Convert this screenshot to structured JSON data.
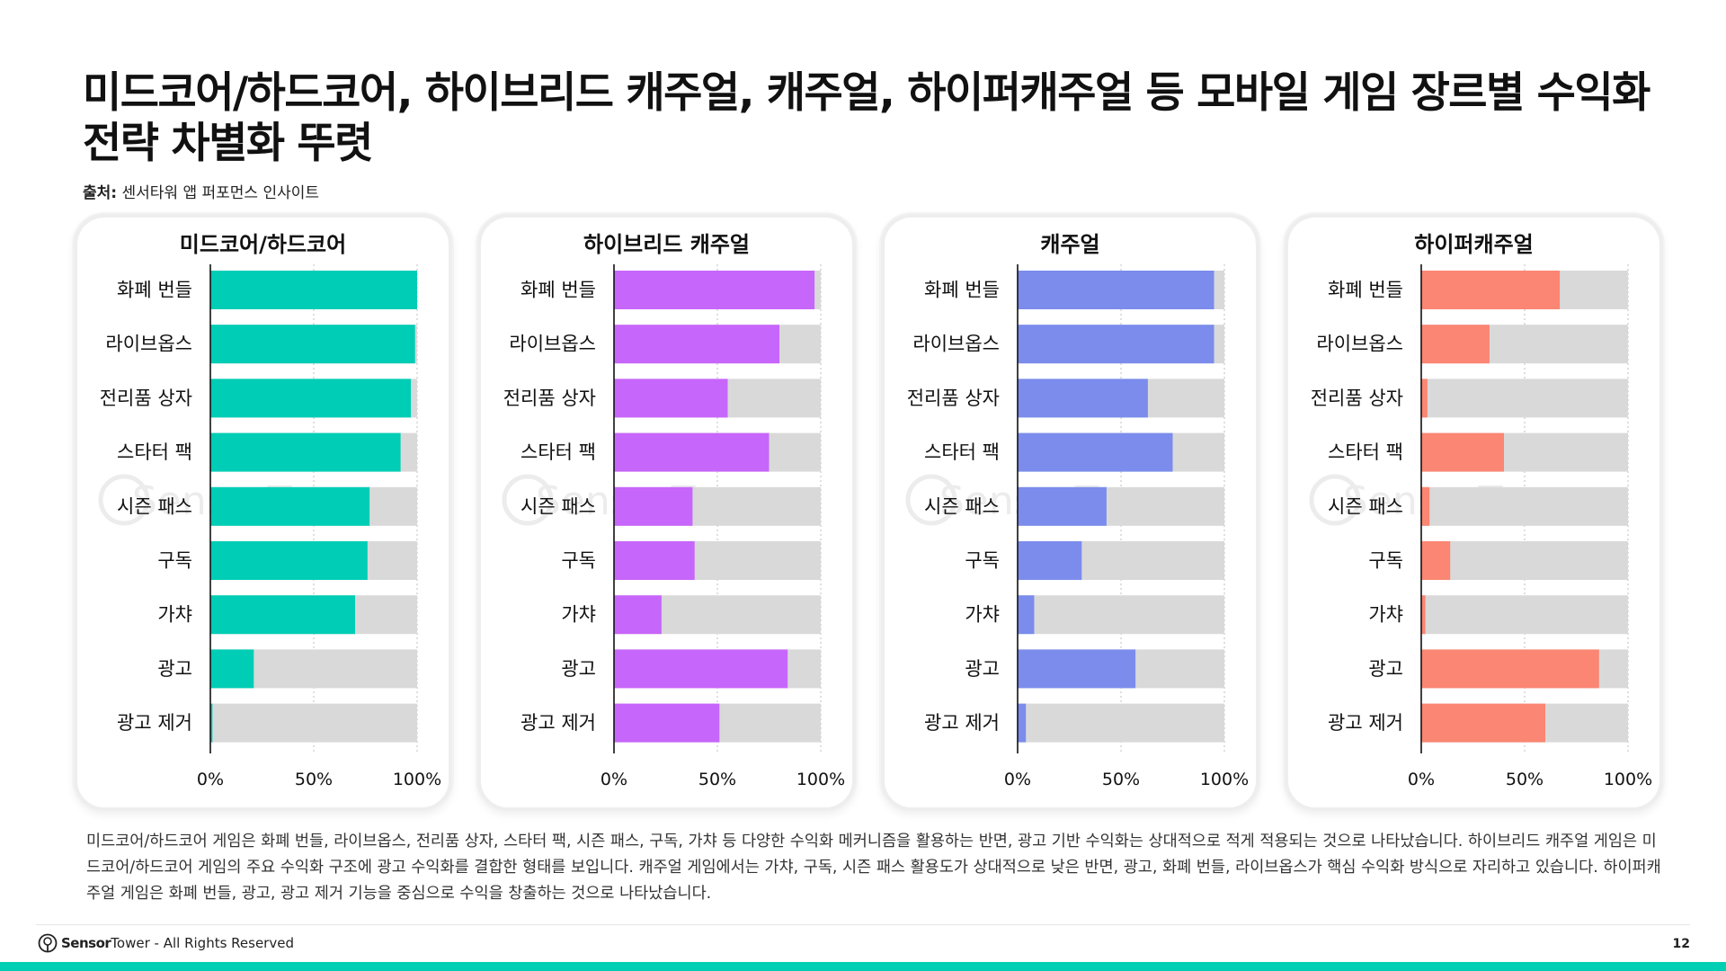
{
  "title": "미드코어/하드코어, 하이브리드 캐주얼, 캐주얼, 하이퍼캐주얼 등 모바일 게임 장르별 수익화 전략 차별화 뚜렷",
  "source": {
    "label": "출처:",
    "text": "센서타워 앱 퍼포먼스 인사이트"
  },
  "description": "미드코어/하드코어 게임은 화폐 번들, 라이브옵스, 전리품 상자, 스타터 팩, 시즌 패스, 구독, 가챠 등 다양한 수익화 메커니즘을 활용하는 반면, 광고 기반 수익화는 상대적으로 적게 적용되는 것으로 나타났습니다. 하이브리드 캐주얼 게임은 미드코어/하드코어 게임의 주요 수익화 구조에 광고 수익화를 결합한 형태를 보입니다. 캐주얼 게임에서는 가챠, 구독, 시즌 패스 활용도가 상대적으로 낮은 반면, 광고, 화폐 번들, 라이브옵스가 핵심 수익화 방식으로 자리하고 있습니다. 하이퍼캐주얼 게임은 화폐 번들, 광고, 광고 제거 기능을 중심으로 수익을 창출하는 것으로 나타났습니다.",
  "footer": {
    "brand_bold": "Sensor",
    "brand_rest": "Tower",
    "rights": " - All Rights Reserved",
    "page": "12"
  },
  "watermark": "SensorTower",
  "colors": {
    "accent": "#00cfb4",
    "track": "#d9d9d9"
  },
  "chart_data": [
    {
      "type": "bar",
      "orientation": "horizontal",
      "stacked_to_100": true,
      "title": "미드코어/하드코어",
      "color": "#00cdb5",
      "categories": [
        "화폐 번들",
        "라이브옵스",
        "전리품 상자",
        "스타터 팩",
        "시즌 패스",
        "구독",
        "가챠",
        "광고",
        "광고 제거"
      ],
      "values": [
        100,
        99,
        97,
        92,
        77,
        76,
        70,
        21,
        1
      ],
      "xlim": [
        0,
        100
      ],
      "xticks": [
        "0%",
        "50%",
        "100%"
      ]
    },
    {
      "type": "bar",
      "orientation": "horizontal",
      "stacked_to_100": true,
      "title": "하이브리드 캐주얼",
      "color": "#c766fa",
      "categories": [
        "화폐 번들",
        "라이브옵스",
        "전리품 상자",
        "스타터 팩",
        "시즌 패스",
        "구독",
        "가챠",
        "광고",
        "광고 제거"
      ],
      "values": [
        97,
        80,
        55,
        75,
        38,
        39,
        23,
        84,
        51
      ],
      "xlim": [
        0,
        100
      ],
      "xticks": [
        "0%",
        "50%",
        "100%"
      ]
    },
    {
      "type": "bar",
      "orientation": "horizontal",
      "stacked_to_100": true,
      "title": "캐주얼",
      "color": "#7b8cec",
      "categories": [
        "화폐 번들",
        "라이브옵스",
        "전리품 상자",
        "스타터 팩",
        "시즌 패스",
        "구독",
        "가챠",
        "광고",
        "광고 제거"
      ],
      "values": [
        95,
        95,
        63,
        75,
        43,
        31,
        8,
        57,
        4
      ],
      "xlim": [
        0,
        100
      ],
      "xticks": [
        "0%",
        "50%",
        "100%"
      ]
    },
    {
      "type": "bar",
      "orientation": "horizontal",
      "stacked_to_100": true,
      "title": "하이퍼캐주얼",
      "color": "#fa8673",
      "categories": [
        "화폐 번들",
        "라이브옵스",
        "전리품 상자",
        "스타터 팩",
        "시즌 패스",
        "구독",
        "가챠",
        "광고",
        "광고 제거"
      ],
      "values": [
        67,
        33,
        3,
        40,
        4,
        14,
        2,
        86,
        60
      ],
      "xlim": [
        0,
        100
      ],
      "xticks": [
        "0%",
        "50%",
        "100%"
      ]
    }
  ]
}
